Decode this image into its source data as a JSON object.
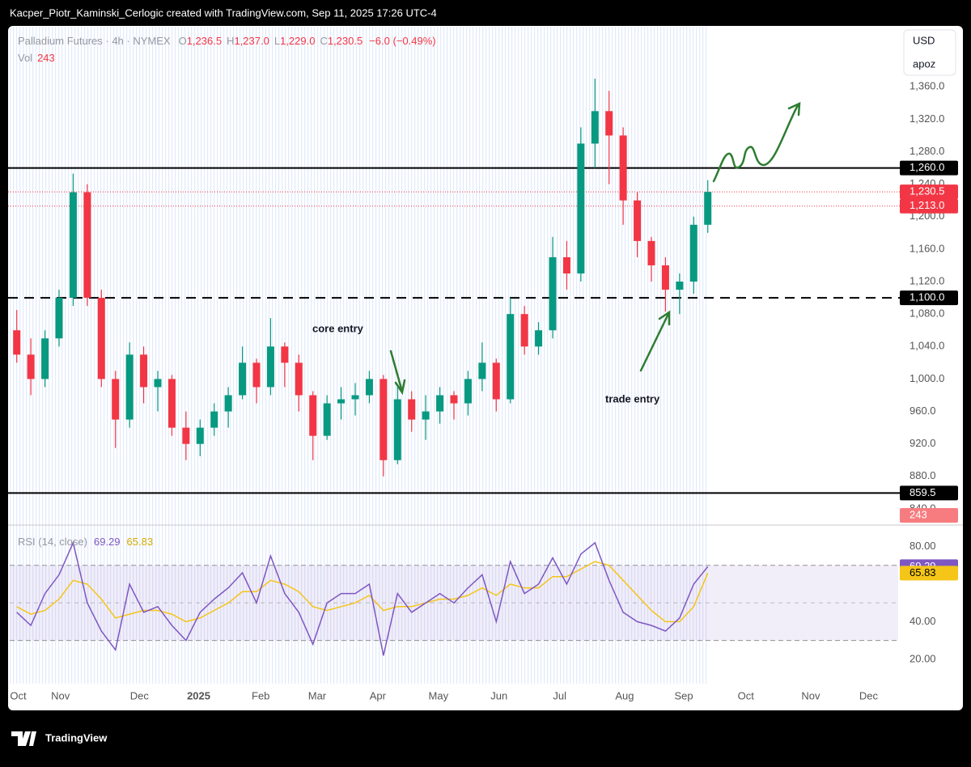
{
  "chart_data": {
    "type": "candlestick",
    "caption": "Kacper_Piotr_Kaminski_Cerlogic created with TradingView.com, Sep 11, 2025 17:26 UTC-4",
    "legend": {
      "symbol": "Palladium Futures · 4h · NYMEX",
      "o_key": "O",
      "o": "1,236.5",
      "h_key": "H",
      "h": "1,237.0",
      "l_key": "L",
      "l": "1,229.0",
      "c_key": "C",
      "c": "1,230.5",
      "change": "−6.0 (−0.49%)",
      "vol_key": "Vol",
      "vol": "243"
    },
    "currency": "USD",
    "scale_mode": "apoz",
    "up_color": "#089981",
    "down_color": "#f23645",
    "xlim": [
      0,
      63
    ],
    "xticks": [
      {
        "value": 0.6,
        "label": "Oct"
      },
      {
        "value": 3.6,
        "label": "Nov"
      },
      {
        "value": 9.2,
        "label": "Dec"
      },
      {
        "value": 13.4,
        "label": "2025"
      },
      {
        "value": 17.8,
        "label": "Feb"
      },
      {
        "value": 21.8,
        "label": "Mar"
      },
      {
        "value": 26.1,
        "label": "Apr"
      },
      {
        "value": 30.4,
        "label": "May"
      },
      {
        "value": 34.7,
        "label": "Jun"
      },
      {
        "value": 39.0,
        "label": "Jul"
      },
      {
        "value": 43.6,
        "label": "Aug"
      },
      {
        "value": 47.8,
        "label": "Sep"
      },
      {
        "value": 52.2,
        "label": "Oct"
      },
      {
        "value": 56.8,
        "label": "Nov"
      },
      {
        "value": 60.9,
        "label": "Dec"
      }
    ],
    "ylim": [
      821,
      1435
    ],
    "yticks": [
      {
        "value": 1360,
        "label": "1,360.0"
      },
      {
        "value": 1320,
        "label": "1,320.0"
      },
      {
        "value": 1280,
        "label": "1,280.0"
      },
      {
        "value": 1240,
        "label": "1,240.0"
      },
      {
        "value": 1200,
        "label": "1,200.0"
      },
      {
        "value": 1160,
        "label": "1,160.0"
      },
      {
        "value": 1120,
        "label": "1,120.0"
      },
      {
        "value": 1080,
        "label": "1,080.0"
      },
      {
        "value": 1040,
        "label": "1,040.0"
      },
      {
        "value": 1000,
        "label": "1,000.0"
      },
      {
        "value": 960,
        "label": "960.0"
      },
      {
        "value": 920,
        "label": "920.0"
      },
      {
        "value": 880,
        "label": "880.0"
      },
      {
        "value": 840,
        "label": "840.0"
      }
    ],
    "candles": [
      [
        1060,
        1085,
        1020,
        1030
      ],
      [
        1030,
        1050,
        980,
        1000
      ],
      [
        1000,
        1060,
        990,
        1050
      ],
      [
        1050,
        1110,
        1040,
        1100
      ],
      [
        1100,
        1253,
        1090,
        1230
      ],
      [
        1230,
        1240,
        1090,
        1100
      ],
      [
        1100,
        1110,
        990,
        1000
      ],
      [
        1000,
        1010,
        915,
        950
      ],
      [
        950,
        1045,
        940,
        1030
      ],
      [
        1030,
        1040,
        970,
        990
      ],
      [
        990,
        1010,
        960,
        1000
      ],
      [
        1000,
        1005,
        930,
        940
      ],
      [
        940,
        960,
        900,
        920
      ],
      [
        920,
        950,
        905,
        940
      ],
      [
        940,
        970,
        930,
        960
      ],
      [
        960,
        990,
        940,
        980
      ],
      [
        980,
        1040,
        975,
        1020
      ],
      [
        1020,
        1025,
        970,
        990
      ],
      [
        990,
        1075,
        980,
        1040
      ],
      [
        1040,
        1045,
        990,
        1020
      ],
      [
        1020,
        1030,
        960,
        980
      ],
      [
        980,
        985,
        900,
        930
      ],
      [
        930,
        980,
        925,
        970
      ],
      [
        970,
        990,
        950,
        975
      ],
      [
        975,
        995,
        955,
        980
      ],
      [
        980,
        1010,
        970,
        1000
      ],
      [
        1000,
        1005,
        880,
        900
      ],
      [
        900,
        990,
        895,
        975
      ],
      [
        975,
        985,
        935,
        950
      ],
      [
        950,
        980,
        925,
        960
      ],
      [
        960,
        990,
        945,
        980
      ],
      [
        980,
        985,
        950,
        970
      ],
      [
        970,
        1010,
        955,
        1000
      ],
      [
        1000,
        1045,
        985,
        1020
      ],
      [
        1020,
        1025,
        960,
        975
      ],
      [
        975,
        1100,
        970,
        1080
      ],
      [
        1080,
        1090,
        1030,
        1040
      ],
      [
        1040,
        1070,
        1030,
        1060
      ],
      [
        1060,
        1175,
        1050,
        1150
      ],
      [
        1150,
        1170,
        1110,
        1130
      ],
      [
        1130,
        1310,
        1120,
        1290
      ],
      [
        1290,
        1370,
        1260,
        1330
      ],
      [
        1330,
        1355,
        1240,
        1300
      ],
      [
        1300,
        1310,
        1190,
        1220
      ],
      [
        1220,
        1230,
        1150,
        1170
      ],
      [
        1170,
        1175,
        1120,
        1140
      ],
      [
        1140,
        1150,
        1083,
        1110
      ],
      [
        1110,
        1130,
        1080,
        1120
      ],
      [
        1120,
        1200,
        1105,
        1190
      ],
      [
        1190,
        1245,
        1180,
        1230.5
      ]
    ],
    "levels": [
      {
        "value": 1260,
        "label": "1,260.0",
        "style": "solid"
      },
      {
        "value": 1100,
        "label": "1,100.0",
        "style": "dashed"
      },
      {
        "value": 859.5,
        "label": "859.5",
        "style": "solid"
      }
    ],
    "price_marks": [
      {
        "value": 1230.5,
        "label": "1,230.5"
      },
      {
        "value": 1213.0,
        "label": "1,213.0"
      }
    ],
    "annotations": [
      "core entry",
      "trade entry"
    ],
    "rsi": {
      "title": "RSI (14, close)",
      "value_label": "69.29",
      "ma_label": "65.83",
      "color": "#7e57c2",
      "ma_color": "#f5c518",
      "ylim": [
        7,
        91
      ],
      "yticks": [
        {
          "value": 80,
          "label": "80.00"
        },
        {
          "value": 40,
          "label": "40.00"
        },
        {
          "value": 20,
          "label": "20.00"
        }
      ],
      "bands": [
        70,
        50,
        30
      ],
      "values": [
        45,
        38,
        55,
        65,
        82,
        50,
        35,
        25,
        60,
        45,
        48,
        38,
        30,
        45,
        52,
        58,
        66,
        50,
        75,
        55,
        45,
        28,
        50,
        55,
        55,
        60,
        22,
        55,
        45,
        50,
        55,
        50,
        58,
        65,
        40,
        72,
        55,
        60,
        74,
        60,
        76,
        82,
        62,
        45,
        40,
        38,
        35,
        42,
        60,
        69.29
      ],
      "ma": [
        48,
        44,
        46,
        52,
        62,
        60,
        52,
        42,
        44,
        46,
        46,
        44,
        40,
        42,
        46,
        50,
        56,
        56,
        62,
        60,
        56,
        48,
        46,
        48,
        50,
        54,
        46,
        48,
        48,
        50,
        52,
        52,
        54,
        58,
        54,
        60,
        58,
        58,
        64,
        64,
        68,
        72,
        70,
        62,
        54,
        46,
        40,
        40,
        48,
        65.83
      ]
    },
    "brand": "TradingView"
  }
}
